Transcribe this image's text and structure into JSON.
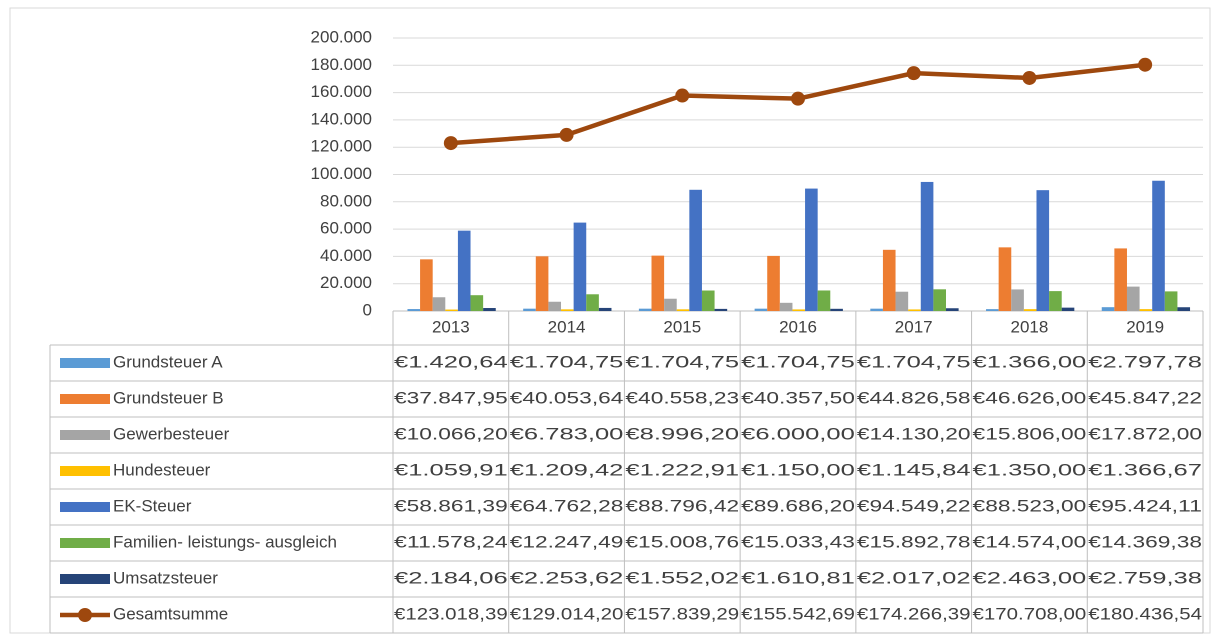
{
  "chart_data": {
    "type": "bar",
    "categories": [
      "2013",
      "2014",
      "2015",
      "2016",
      "2017",
      "2018",
      "2019"
    ],
    "series": [
      {
        "name": "Grundsteuer  A",
        "color": "#5b9bd5",
        "values": [
          1420.64,
          1704.75,
          1704.75,
          1704.75,
          1704.75,
          1366.0,
          2797.78
        ],
        "value_labels": [
          "€1.420,64",
          "€1.704,75",
          "€1.704,75",
          "€1.704,75",
          "€1.704,75",
          "€1.366,00",
          "€2.797,78"
        ]
      },
      {
        "name": "Grundsteuer  B",
        "color": "#ed7d31",
        "values": [
          37847.95,
          40053.64,
          40558.23,
          40357.5,
          44826.58,
          46626.0,
          45847.22
        ],
        "value_labels": [
          "€37.847,95",
          "€40.053,64",
          "€40.558,23",
          "€40.357,50",
          "€44.826,58",
          "€46.626,00",
          "€45.847,22"
        ]
      },
      {
        "name": "Gewerbesteuer",
        "color": "#a5a5a5",
        "values": [
          10066.2,
          6783.0,
          8996.2,
          6000.0,
          14130.2,
          15806.0,
          17872.0
        ],
        "value_labels": [
          "€10.066,20",
          "€6.783,00",
          "€8.996,20",
          "€6.000,00",
          "€14.130,20",
          "€15.806,00",
          "€17.872,00"
        ]
      },
      {
        "name": "Hundesteuer",
        "color": "#ffc000",
        "values": [
          1059.91,
          1209.42,
          1222.91,
          1150.0,
          1145.84,
          1350.0,
          1366.67
        ],
        "value_labels": [
          "€1.059,91",
          "€1.209,42",
          "€1.222,91",
          "€1.150,00",
          "€1.145,84",
          "€1.350,00",
          "€1.366,67"
        ]
      },
      {
        "name": "EK-Steuer",
        "color": "#4472c4",
        "values": [
          58861.39,
          64762.28,
          88796.42,
          89686.2,
          94549.22,
          88523.0,
          95424.11
        ],
        "value_labels": [
          "€58.861,39",
          "€64.762,28",
          "€88.796,42",
          "€89.686,20",
          "€94.549,22",
          "€88.523,00",
          "€95.424,11"
        ]
      },
      {
        "name": "Familien- leistungs- ausgleich",
        "color": "#70ad47",
        "values": [
          11578.24,
          12247.49,
          15008.76,
          15033.43,
          15892.78,
          14574.0,
          14369.38
        ],
        "value_labels": [
          "€11.578,24",
          "€12.247,49",
          "€15.008,76",
          "€15.033,43",
          "€15.892,78",
          "€14.574,00",
          "€14.369,38"
        ]
      },
      {
        "name": "Umsatzsteuer",
        "color": "#264478",
        "values": [
          2184.06,
          2253.62,
          1552.02,
          1610.81,
          2017.02,
          2463.0,
          2759.38
        ],
        "value_labels": [
          "€2.184,06",
          "€2.253,62",
          "€1.552,02",
          "€1.610,81",
          "€2.017,02",
          "€2.463,00",
          "€2.759,38"
        ]
      },
      {
        "name": "Gesamtsumme",
        "type": "line",
        "color": "#9e480e",
        "values": [
          123018.39,
          129014.2,
          157839.29,
          155542.69,
          174266.39,
          170708.0,
          180436.54
        ],
        "value_labels": [
          "€123.018,39",
          "€129.014,20",
          "€157.839,29",
          "€155.542,69",
          "€174.266,39",
          "€170.708,00",
          "€180.436,54"
        ]
      }
    ],
    "ylim": [
      0,
      200000
    ],
    "yticks": [
      0,
      {
        "value": 20000,
        "label": "20.000"
      },
      {
        "value": 40000,
        "label": "40.000"
      },
      {
        "value": 60000,
        "label": "60.000"
      },
      {
        "value": 80000,
        "label": "80.000"
      },
      {
        "value": 100000,
        "label": "100.000"
      },
      {
        "value": 120000,
        "label": "120.000"
      },
      {
        "value": 140000,
        "label": "140.000"
      },
      {
        "value": 160000,
        "label": "160.000"
      },
      {
        "value": 180000,
        "label": "180.000"
      },
      {
        "value": 200000,
        "label": "200.000"
      }
    ],
    "grid": true,
    "legend": "data-table"
  }
}
